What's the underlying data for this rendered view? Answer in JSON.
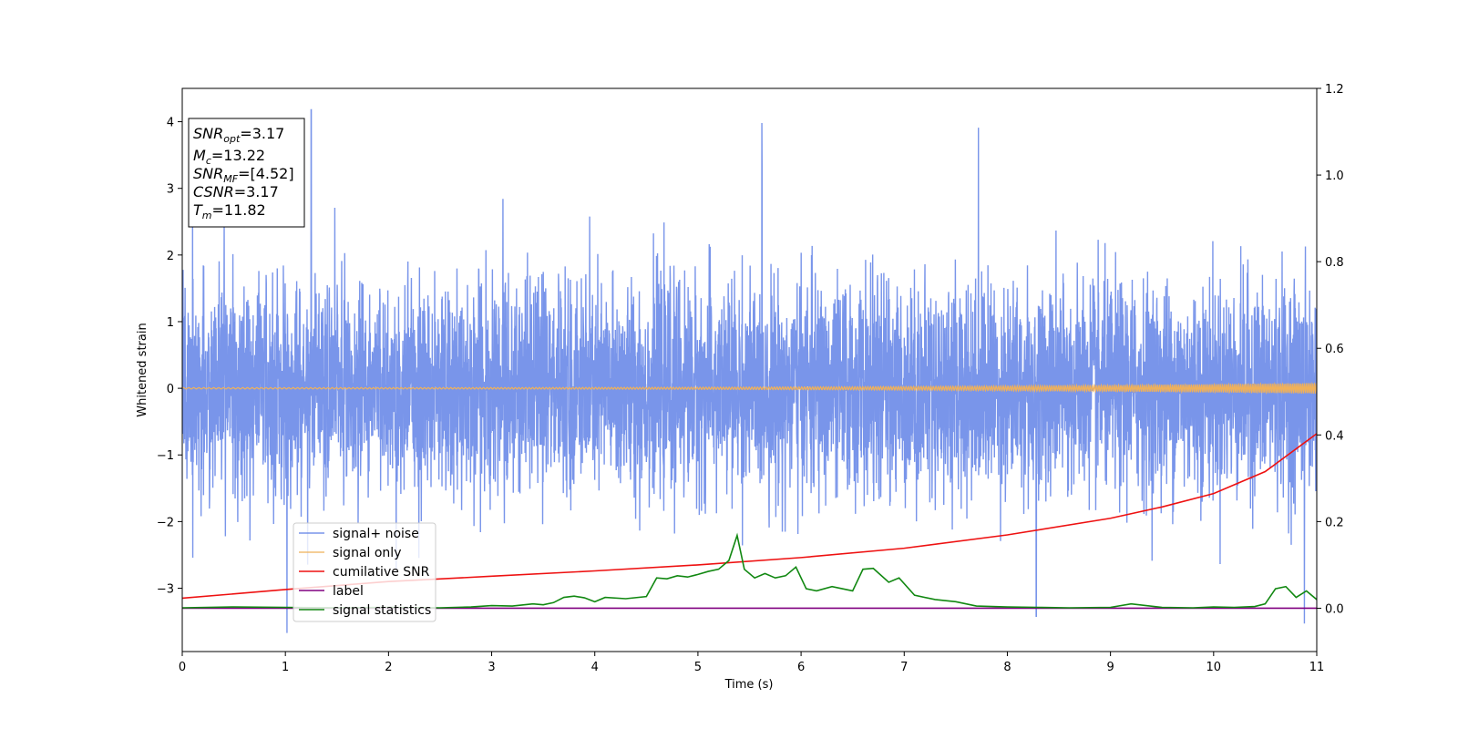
{
  "chart_data": {
    "type": "line",
    "xlabel": "Time (s)",
    "ylabel": "Whitened strain",
    "xlim": [
      0,
      11
    ],
    "ylim_left": [
      -3.95,
      4.5
    ],
    "ylim_right": [
      -0.1,
      1.2
    ],
    "x_ticks": [
      0,
      1,
      2,
      3,
      4,
      5,
      6,
      7,
      8,
      9,
      10,
      11
    ],
    "y_ticks_left": [
      -3,
      -2,
      -1,
      0,
      1,
      2,
      3,
      4
    ],
    "y_tick_labels_left": [
      "−3",
      "−2",
      "−1",
      "0",
      "1",
      "2",
      "3",
      "4"
    ],
    "y_ticks_right": [
      0.0,
      0.2,
      0.4,
      0.6,
      0.8,
      1.0,
      1.2
    ],
    "y_tick_labels_right": [
      "0.0",
      "0.2",
      "0.4",
      "0.6",
      "0.8",
      "1.0",
      "1.2"
    ],
    "legend_placement": "lower-left",
    "series": [
      {
        "name": "signal+ noise",
        "axis": "left",
        "color": "#6283e6",
        "kind": "noise",
        "typical_range": [
          -2.0,
          2.0
        ],
        "peaks": [
          [
            0.1,
            2.9
          ],
          [
            1.25,
            4.18
          ],
          [
            5.62,
            3.98
          ],
          [
            7.72,
            3.91
          ],
          [
            8.28,
            -3.42
          ],
          [
            10.88,
            -3.53
          ]
        ]
      },
      {
        "name": "signal only",
        "axis": "left",
        "color": "#f0b15a",
        "kind": "chirp",
        "amplitude_start": 0.01,
        "amplitude_end": 0.08
      },
      {
        "name": "cumilative SNR",
        "axis": "left",
        "color": "#ee1111",
        "x": [
          0,
          1,
          2,
          3,
          4,
          5,
          6,
          7,
          8,
          9,
          9.5,
          10,
          10.5,
          11
        ],
        "y": [
          -3.15,
          -3.02,
          -2.9,
          -2.82,
          -2.74,
          -2.65,
          -2.54,
          -2.4,
          -2.2,
          -1.95,
          -1.78,
          -1.58,
          -1.25,
          -0.68
        ]
      },
      {
        "name": "label",
        "axis": "right",
        "color": "#800080",
        "x": [
          0,
          11
        ],
        "y": [
          0.0,
          0.0
        ]
      },
      {
        "name": "signal statistics",
        "axis": "right",
        "color": "#118811",
        "x": [
          0,
          0.5,
          1,
          1.5,
          2,
          2.5,
          2.8,
          3,
          3.2,
          3.4,
          3.5,
          3.6,
          3.7,
          3.8,
          3.9,
          4,
          4.1,
          4.3,
          4.5,
          4.6,
          4.7,
          4.8,
          4.9,
          5,
          5.1,
          5.2,
          5.3,
          5.38,
          5.45,
          5.55,
          5.65,
          5.75,
          5.85,
          5.95,
          6.05,
          6.15,
          6.3,
          6.4,
          6.5,
          6.6,
          6.7,
          6.85,
          6.95,
          7.1,
          7.3,
          7.5,
          7.7,
          8,
          8.3,
          8.6,
          9,
          9.2,
          9.5,
          9.8,
          10,
          10.2,
          10.4,
          10.5,
          10.6,
          10.7,
          10.8,
          10.9,
          11
        ],
        "y": [
          0.001,
          0.003,
          0.002,
          0.001,
          0.002,
          0.001,
          0.003,
          0.006,
          0.005,
          0.01,
          0.008,
          0.013,
          0.025,
          0.028,
          0.024,
          0.015,
          0.025,
          0.022,
          0.027,
          0.07,
          0.068,
          0.075,
          0.072,
          0.078,
          0.085,
          0.09,
          0.11,
          0.168,
          0.09,
          0.07,
          0.08,
          0.07,
          0.075,
          0.095,
          0.045,
          0.04,
          0.05,
          0.045,
          0.04,
          0.09,
          0.092,
          0.06,
          0.07,
          0.03,
          0.02,
          0.015,
          0.005,
          0.003,
          0.002,
          0.001,
          0.002,
          0.01,
          0.002,
          0.001,
          0.003,
          0.002,
          0.004,
          0.01,
          0.045,
          0.05,
          0.025,
          0.04,
          0.02
        ]
      }
    ],
    "annotation_box": [
      {
        "main": "SNR",
        "sub": "opt",
        "value": "=3.17"
      },
      {
        "main": "M",
        "sub": "c",
        "value": "=13.22"
      },
      {
        "main": "SNR",
        "sub": "MF",
        "value": "=[4.52]"
      },
      {
        "main": "CSNR",
        "sub": "",
        "value": "=3.17"
      },
      {
        "main": "T",
        "sub": "m",
        "value": "=11.82"
      }
    ]
  }
}
